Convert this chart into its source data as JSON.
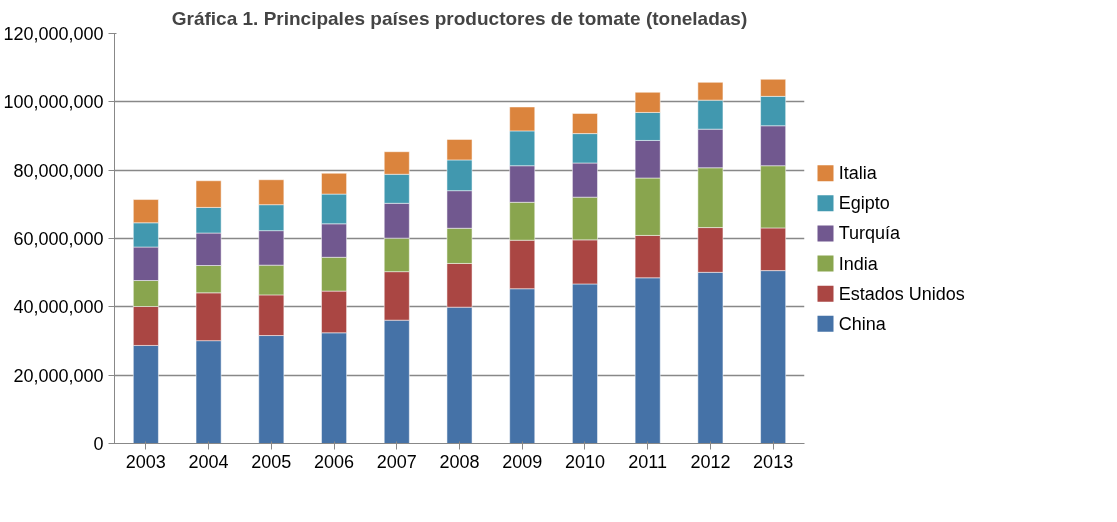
{
  "chart_data": {
    "type": "bar",
    "stacked": true,
    "title": "Gráfica 1. Principales países productores de tomate (toneladas)",
    "categories": [
      "2003",
      "2004",
      "2005",
      "2006",
      "2007",
      "2008",
      "2009",
      "2010",
      "2011",
      "2012",
      "2013"
    ],
    "series": [
      {
        "name": "China",
        "color": "#4572a7",
        "values": [
          28700000,
          30100000,
          31600000,
          32400000,
          36100000,
          39900000,
          45300000,
          46700000,
          48500000,
          50100000,
          50600000
        ]
      },
      {
        "name": "Estados Unidos",
        "color": "#aa4643",
        "values": [
          11400000,
          14000000,
          11900000,
          12200000,
          14200000,
          12800000,
          14200000,
          12900000,
          12400000,
          13100000,
          12500000
        ]
      },
      {
        "name": "India",
        "color": "#89a54e",
        "values": [
          7600000,
          8000000,
          8700000,
          9900000,
          9800000,
          10300000,
          11100000,
          12500000,
          16800000,
          17500000,
          18200000
        ]
      },
      {
        "name": "Turquía",
        "color": "#71588f",
        "values": [
          9800000,
          9500000,
          10100000,
          9800000,
          10200000,
          11000000,
          10700000,
          10000000,
          11000000,
          11300000,
          11700000
        ]
      },
      {
        "name": "Egipto",
        "color": "#4198af",
        "values": [
          7100000,
          7500000,
          7600000,
          8700000,
          8500000,
          9000000,
          10200000,
          8600000,
          8200000,
          8500000,
          8600000
        ]
      },
      {
        "name": "Italia",
        "color": "#db843d",
        "values": [
          6800000,
          7800000,
          7300000,
          6100000,
          6600000,
          6000000,
          7000000,
          5900000,
          5900000,
          5200000,
          5000000
        ]
      }
    ],
    "ylim": [
      0,
      120000000
    ],
    "yticks": [
      0,
      {
        "value": 20000000,
        "label": "20,000,000"
      },
      {
        "value": 40000000,
        "label": "40,000,000"
      },
      {
        "value": 60000000,
        "label": "60,000,000"
      },
      {
        "value": 80000000,
        "label": "80,000,000"
      },
      {
        "value": 100000000,
        "label": "100,000,000"
      },
      {
        "value": 120000000,
        "label": "120,000,000"
      }
    ],
    "grid": "y",
    "legend": "right"
  }
}
